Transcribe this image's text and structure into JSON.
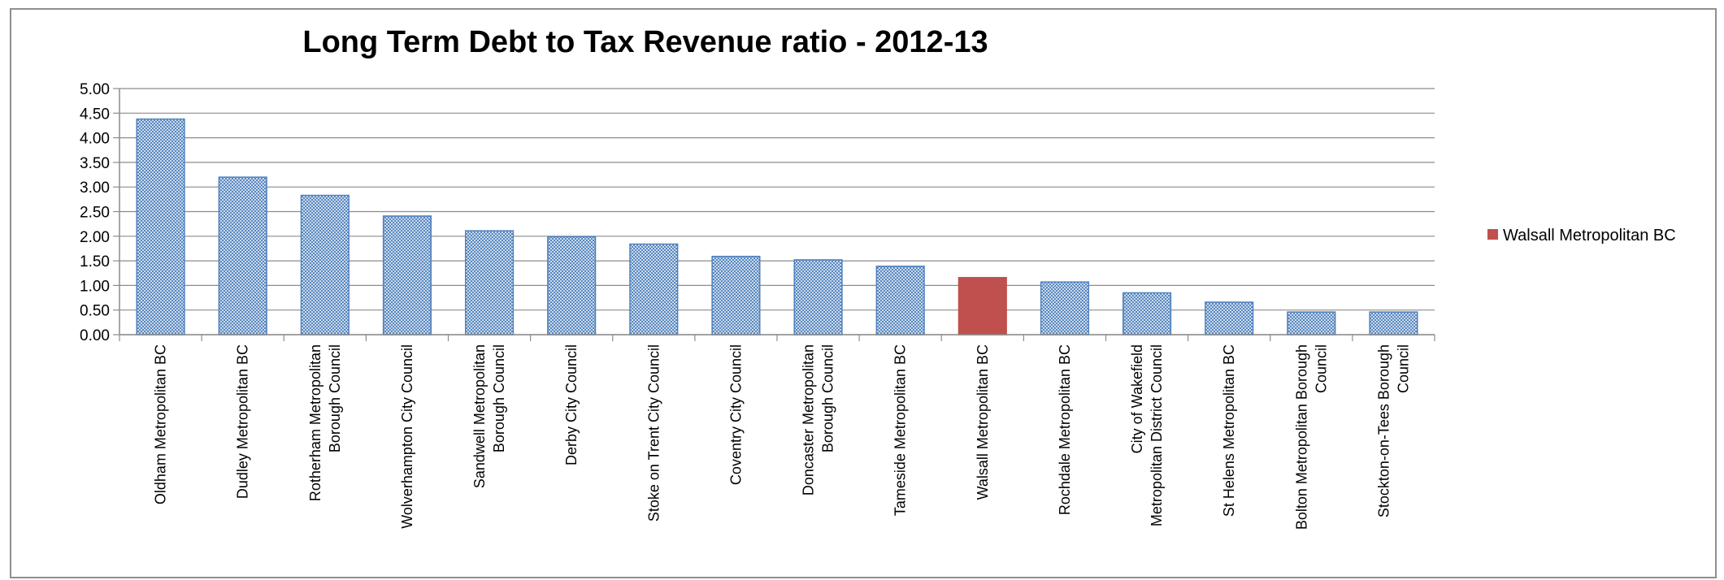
{
  "chart_data": {
    "type": "bar",
    "title": "Long Term Debt to Tax Revenue ratio - 2012-13",
    "xlabel": "",
    "ylabel": "",
    "ylim": [
      0,
      5
    ],
    "yticks": [
      "0.00",
      "0.50",
      "1.00",
      "1.50",
      "2.00",
      "2.50",
      "3.00",
      "3.50",
      "4.00",
      "4.50",
      "5.00"
    ],
    "grid": true,
    "legend": {
      "position": "right",
      "entries": [
        {
          "label": "Walsall Metropolitan BC",
          "color": "#c0504d"
        }
      ]
    },
    "categories": [
      [
        "Oldham Metropolitan BC"
      ],
      [
        "Dudley Metropolitan BC"
      ],
      [
        "Rotherham Metropolitan",
        "Borough Council"
      ],
      [
        "Wolverhampton City Council"
      ],
      [
        "Sandwell Metropolitan",
        "Borough Council"
      ],
      [
        "Derby City Council"
      ],
      [
        "Stoke on Trent City Council"
      ],
      [
        "Coventry City Council"
      ],
      [
        "Doncaster Metropolitan",
        "Borough Council"
      ],
      [
        "Tameside Metropolitan BC"
      ],
      [
        "Walsall Metropolitan BC"
      ],
      [
        "Rochdale Metropolitan BC"
      ],
      [
        "City of Wakefield",
        "Metropolitan District Council"
      ],
      [
        "St Helens Metropolitan BC"
      ],
      [
        "Bolton Metropolitan Borough",
        "Council"
      ],
      [
        "Stockton-on-Tees Borough",
        "Council"
      ]
    ],
    "values": [
      4.38,
      3.2,
      2.83,
      2.41,
      2.11,
      1.99,
      1.84,
      1.59,
      1.52,
      1.39,
      1.16,
      1.07,
      0.85,
      0.66,
      0.46,
      0.46
    ],
    "highlight_index": 10,
    "colors": {
      "bar": "#4f81bd",
      "highlight": "#c0504d",
      "grid": "#8c8c8c",
      "axis": "#8c8c8c"
    }
  }
}
